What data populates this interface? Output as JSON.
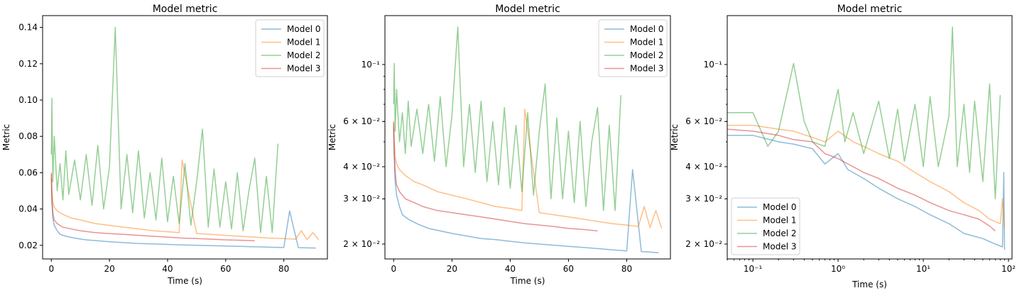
{
  "chart_data": [
    {
      "type": "line",
      "title": "Model metric",
      "xlabel": "Time (s)",
      "ylabel": "Metric",
      "xscale": "linear",
      "yscale": "linear",
      "xlim": [
        -3,
        95
      ],
      "ylim": [
        0.0125,
        0.1465
      ],
      "xticks": [
        0,
        20,
        40,
        60,
        80
      ],
      "xtick_labels": [
        "0",
        "20",
        "40",
        "60",
        "80"
      ],
      "yticks": [
        0.02,
        0.04,
        0.06,
        0.08,
        0.1,
        0.12,
        0.14
      ],
      "ytick_labels": [
        "0.02",
        "0.04",
        "0.06",
        "0.08",
        "0.10",
        "0.12",
        "0.14"
      ],
      "legend": "upper right",
      "grid": false,
      "series": [
        {
          "name": "Model 0",
          "color": "#1f77b4",
          "x": [
            0,
            0.2,
            0.5,
            1,
            2,
            3,
            5,
            8,
            12,
            16,
            20,
            25,
            30,
            35,
            40,
            45,
            50,
            55,
            60,
            65,
            70,
            75,
            80,
            82,
            85,
            88,
            91
          ],
          "y": [
            0.057,
            0.045,
            0.035,
            0.031,
            0.028,
            0.026,
            0.025,
            0.024,
            0.023,
            0.0225,
            0.022,
            0.0215,
            0.021,
            0.0208,
            0.0205,
            0.0202,
            0.02,
            0.0198,
            0.0196,
            0.0194,
            0.0192,
            0.019,
            0.0188,
            0.039,
            0.0187,
            0.0186,
            0.0185
          ]
        },
        {
          "name": "Model 1",
          "color": "#ff7f0e",
          "x": [
            0,
            0.2,
            0.5,
            1,
            2,
            4,
            7,
            10,
            15,
            20,
            25,
            30,
            35,
            40,
            44,
            45,
            50,
            55,
            60,
            65,
            70,
            75,
            80,
            84,
            86,
            88,
            90,
            92
          ],
          "y": [
            0.059,
            0.05,
            0.044,
            0.041,
            0.039,
            0.037,
            0.035,
            0.034,
            0.032,
            0.031,
            0.03,
            0.029,
            0.028,
            0.0275,
            0.027,
            0.067,
            0.0265,
            0.026,
            0.0255,
            0.025,
            0.0245,
            0.024,
            0.0237,
            0.0234,
            0.028,
            0.0232,
            0.027,
            0.023
          ]
        },
        {
          "name": "Model 2",
          "color": "#2ca02c",
          "x": [
            0,
            0.2,
            0.5,
            1,
            2,
            3,
            4,
            5,
            6,
            8,
            10,
            12,
            14,
            16,
            18,
            20,
            22,
            24,
            26,
            28,
            30,
            32,
            34,
            36,
            38,
            40,
            42,
            44,
            46,
            48,
            50,
            52,
            54,
            56,
            58,
            60,
            62,
            64,
            66,
            68,
            70,
            72,
            74,
            76,
            78
          ],
          "y": [
            0.07,
            0.101,
            0.055,
            0.08,
            0.05,
            0.065,
            0.045,
            0.072,
            0.048,
            0.067,
            0.045,
            0.07,
            0.042,
            0.075,
            0.04,
            0.063,
            0.14,
            0.04,
            0.07,
            0.038,
            0.072,
            0.035,
            0.06,
            0.034,
            0.068,
            0.033,
            0.058,
            0.032,
            0.065,
            0.031,
            0.055,
            0.084,
            0.03,
            0.062,
            0.03,
            0.055,
            0.029,
            0.06,
            0.028,
            0.05,
            0.068,
            0.027,
            0.058,
            0.027,
            0.076
          ]
        },
        {
          "name": "Model 3",
          "color": "#d62728",
          "x": [
            0,
            0.2,
            0.5,
            1,
            2,
            4,
            7,
            10,
            15,
            20,
            25,
            30,
            35,
            40,
            45,
            50,
            55,
            60,
            65,
            70
          ],
          "y": [
            0.06,
            0.045,
            0.038,
            0.034,
            0.032,
            0.03,
            0.029,
            0.028,
            0.027,
            0.0265,
            0.026,
            0.0255,
            0.025,
            0.0245,
            0.024,
            0.0237,
            0.0234,
            0.023,
            0.0228,
            0.0225
          ]
        }
      ]
    },
    {
      "type": "line",
      "title": "Model metric",
      "xlabel": "Time (s)",
      "ylabel": "Metric",
      "xscale": "linear",
      "yscale": "log",
      "xlim": [
        -3,
        95
      ],
      "ylim": [
        0.0175,
        0.155
      ],
      "xticks": [
        0,
        20,
        40,
        60,
        80
      ],
      "xtick_labels": [
        "0",
        "20",
        "40",
        "60",
        "80"
      ],
      "yticks": [
        0.02,
        0.03,
        0.04,
        0.06,
        0.1
      ],
      "ytick_labels": [
        "2 × 10⁻²",
        "3 × 10⁻²",
        "4 × 10⁻²",
        "6 × 10⁻²",
        "10⁻¹"
      ],
      "legend": "upper right",
      "grid": false,
      "series": [
        {
          "name": "Model 0",
          "color": "#1f77b4",
          "x": [
            0,
            0.2,
            0.5,
            1,
            2,
            3,
            5,
            8,
            12,
            16,
            20,
            25,
            30,
            35,
            40,
            45,
            50,
            55,
            60,
            65,
            70,
            75,
            80,
            82,
            85,
            88,
            91
          ],
          "y": [
            0.057,
            0.045,
            0.035,
            0.031,
            0.028,
            0.026,
            0.025,
            0.024,
            0.023,
            0.0225,
            0.022,
            0.0215,
            0.021,
            0.0208,
            0.0205,
            0.0202,
            0.02,
            0.0198,
            0.0196,
            0.0194,
            0.0192,
            0.019,
            0.0188,
            0.039,
            0.0187,
            0.0186,
            0.0185
          ]
        },
        {
          "name": "Model 1",
          "color": "#ff7f0e",
          "x": [
            0,
            0.2,
            0.5,
            1,
            2,
            4,
            7,
            10,
            15,
            20,
            25,
            30,
            35,
            40,
            44,
            45,
            50,
            55,
            60,
            65,
            70,
            75,
            80,
            84,
            86,
            88,
            90,
            92
          ],
          "y": [
            0.059,
            0.05,
            0.044,
            0.041,
            0.039,
            0.037,
            0.035,
            0.034,
            0.032,
            0.031,
            0.03,
            0.029,
            0.028,
            0.0275,
            0.027,
            0.067,
            0.0265,
            0.026,
            0.0255,
            0.025,
            0.0245,
            0.024,
            0.0237,
            0.0234,
            0.028,
            0.0232,
            0.027,
            0.023
          ]
        },
        {
          "name": "Model 2",
          "color": "#2ca02c",
          "x": [
            0,
            0.2,
            0.5,
            1,
            2,
            3,
            4,
            5,
            6,
            8,
            10,
            12,
            14,
            16,
            18,
            20,
            22,
            24,
            26,
            28,
            30,
            32,
            34,
            36,
            38,
            40,
            42,
            44,
            46,
            48,
            50,
            52,
            54,
            56,
            58,
            60,
            62,
            64,
            66,
            68,
            70,
            72,
            74,
            76,
            78
          ],
          "y": [
            0.07,
            0.101,
            0.055,
            0.08,
            0.05,
            0.065,
            0.045,
            0.072,
            0.048,
            0.067,
            0.045,
            0.07,
            0.042,
            0.075,
            0.04,
            0.063,
            0.14,
            0.04,
            0.07,
            0.038,
            0.072,
            0.035,
            0.06,
            0.034,
            0.068,
            0.033,
            0.058,
            0.032,
            0.065,
            0.031,
            0.055,
            0.084,
            0.03,
            0.062,
            0.03,
            0.055,
            0.029,
            0.06,
            0.028,
            0.05,
            0.068,
            0.027,
            0.058,
            0.027,
            0.076
          ]
        },
        {
          "name": "Model 3",
          "color": "#d62728",
          "x": [
            0,
            0.2,
            0.5,
            1,
            2,
            4,
            7,
            10,
            15,
            20,
            25,
            30,
            35,
            40,
            45,
            50,
            55,
            60,
            65,
            70
          ],
          "y": [
            0.06,
            0.045,
            0.038,
            0.034,
            0.032,
            0.03,
            0.029,
            0.028,
            0.027,
            0.0265,
            0.026,
            0.0255,
            0.025,
            0.0245,
            0.024,
            0.0237,
            0.0234,
            0.023,
            0.0228,
            0.0225
          ]
        }
      ]
    },
    {
      "type": "line",
      "title": "Model metric",
      "xlabel": "Time (s)",
      "ylabel": "Metric",
      "xscale": "log",
      "yscale": "log",
      "xlim": [
        0.05,
        110
      ],
      "ylim": [
        0.0175,
        0.155
      ],
      "xticks": [
        0.1,
        1,
        10,
        100
      ],
      "xtick_labels": [
        "10⁻¹",
        "10⁰",
        "10¹",
        "10²"
      ],
      "yticks": [
        0.02,
        0.03,
        0.04,
        0.06,
        0.1
      ],
      "ytick_labels": [
        "2 × 10⁻²",
        "3 × 10⁻²",
        "4 × 10⁻²",
        "6 × 10⁻²",
        "10⁻¹"
      ],
      "legend": "lower left",
      "grid": false,
      "series": [
        {
          "name": "Model 0",
          "color": "#1f77b4",
          "x": [
            0.05,
            0.1,
            0.2,
            0.3,
            0.5,
            0.7,
            1.0,
            1.3,
            2,
            3,
            5,
            8,
            12,
            20,
            30,
            50,
            70,
            85,
            88,
            90
          ],
          "y": [
            0.053,
            0.053,
            0.05,
            0.049,
            0.047,
            0.041,
            0.045,
            0.039,
            0.036,
            0.033,
            0.03,
            0.028,
            0.026,
            0.024,
            0.022,
            0.021,
            0.02,
            0.0195,
            0.038,
            0.019
          ]
        },
        {
          "name": "Model 1",
          "color": "#ff7f0e",
          "x": [
            0.05,
            0.1,
            0.2,
            0.3,
            0.5,
            0.7,
            1.0,
            1.5,
            2,
            3,
            5,
            8,
            12,
            20,
            30,
            45,
            60,
            80,
            85,
            90
          ],
          "y": [
            0.058,
            0.058,
            0.056,
            0.055,
            0.052,
            0.05,
            0.055,
            0.05,
            0.048,
            0.045,
            0.042,
            0.038,
            0.035,
            0.032,
            0.029,
            0.027,
            0.025,
            0.024,
            0.03,
            0.023
          ]
        },
        {
          "name": "Model 2",
          "color": "#2ca02c",
          "x": [
            0.05,
            0.1,
            0.15,
            0.2,
            0.3,
            0.4,
            0.5,
            0.7,
            1.0,
            1.2,
            1.5,
            2,
            3,
            4,
            5,
            6,
            8,
            10,
            12,
            15,
            20,
            22,
            25,
            30,
            35,
            40,
            50,
            60,
            70,
            80
          ],
          "y": [
            0.065,
            0.065,
            0.048,
            0.055,
            0.101,
            0.06,
            0.05,
            0.048,
            0.08,
            0.05,
            0.065,
            0.045,
            0.072,
            0.043,
            0.067,
            0.042,
            0.07,
            0.04,
            0.075,
            0.04,
            0.063,
            0.14,
            0.04,
            0.07,
            0.038,
            0.072,
            0.035,
            0.084,
            0.03,
            0.076
          ]
        },
        {
          "name": "Model 3",
          "color": "#d62728",
          "x": [
            0.05,
            0.1,
            0.2,
            0.3,
            0.5,
            0.7,
            1.0,
            1.5,
            2,
            3,
            5,
            8,
            12,
            20,
            30,
            45,
            60,
            70
          ],
          "y": [
            0.056,
            0.055,
            0.053,
            0.051,
            0.05,
            0.045,
            0.043,
            0.04,
            0.038,
            0.036,
            0.033,
            0.031,
            0.029,
            0.027,
            0.026,
            0.025,
            0.0235,
            0.0225
          ]
        }
      ]
    }
  ]
}
